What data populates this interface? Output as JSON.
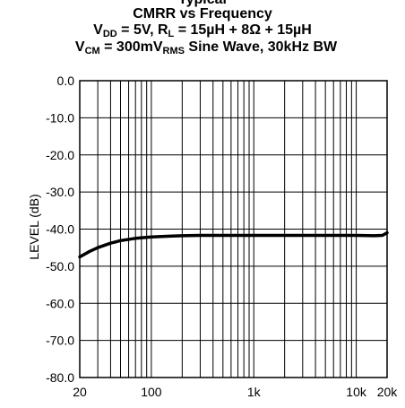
{
  "header": {
    "title_partial": "Typical",
    "title": "CMRR vs Frequency",
    "cond1": {
      "a": "V",
      "a_sub": "DD",
      "b": " = 5V, R",
      "b_sub": "L",
      "c": " = 15µH + 8Ω + 15µH"
    },
    "cond2": {
      "a": "V",
      "a_sub": "CM",
      "b": " = 300mV",
      "b_sub": "RMS",
      "c": " Sine Wave, 30kHz BW"
    }
  },
  "chart_data": {
    "type": "line",
    "title": "CMRR vs Frequency",
    "xlabel": "",
    "ylabel": "LEVEL (dB)",
    "x_scale": "log",
    "xlim": [
      20,
      20000
    ],
    "ylim": [
      -80,
      0
    ],
    "x_ticks": [
      {
        "value": 20,
        "label": "20"
      },
      {
        "value": 100,
        "label": "100"
      },
      {
        "value": 1000,
        "label": "1k"
      },
      {
        "value": 10000,
        "label": "10k"
      },
      {
        "value": 20000,
        "label": "20k"
      }
    ],
    "y_ticks": [
      {
        "value": 0,
        "label": "0.0"
      },
      {
        "value": -10,
        "label": "-10.0"
      },
      {
        "value": -20,
        "label": "-20.0"
      },
      {
        "value": -30,
        "label": "-30.0"
      },
      {
        "value": -40,
        "label": "-40.0"
      },
      {
        "value": -50,
        "label": "-50.0"
      },
      {
        "value": -60,
        "label": "-60.0"
      },
      {
        "value": -70,
        "label": "-70.0"
      },
      {
        "value": -80,
        "label": "-80.0"
      }
    ],
    "grid": true,
    "series": [
      {
        "color": "#000000",
        "points": [
          [
            20,
            -47.5
          ],
          [
            25,
            -46.0
          ],
          [
            30,
            -45.0
          ],
          [
            40,
            -43.8
          ],
          [
            50,
            -43.1
          ],
          [
            70,
            -42.5
          ],
          [
            100,
            -42.1
          ],
          [
            150,
            -41.9
          ],
          [
            200,
            -41.8
          ],
          [
            300,
            -41.7
          ],
          [
            500,
            -41.7
          ],
          [
            1000,
            -41.7
          ],
          [
            2000,
            -41.7
          ],
          [
            3000,
            -41.7
          ],
          [
            5000,
            -41.7
          ],
          [
            10000,
            -41.7
          ],
          [
            15000,
            -41.8
          ],
          [
            18000,
            -41.7
          ],
          [
            20000,
            -41.0
          ]
        ]
      }
    ]
  }
}
